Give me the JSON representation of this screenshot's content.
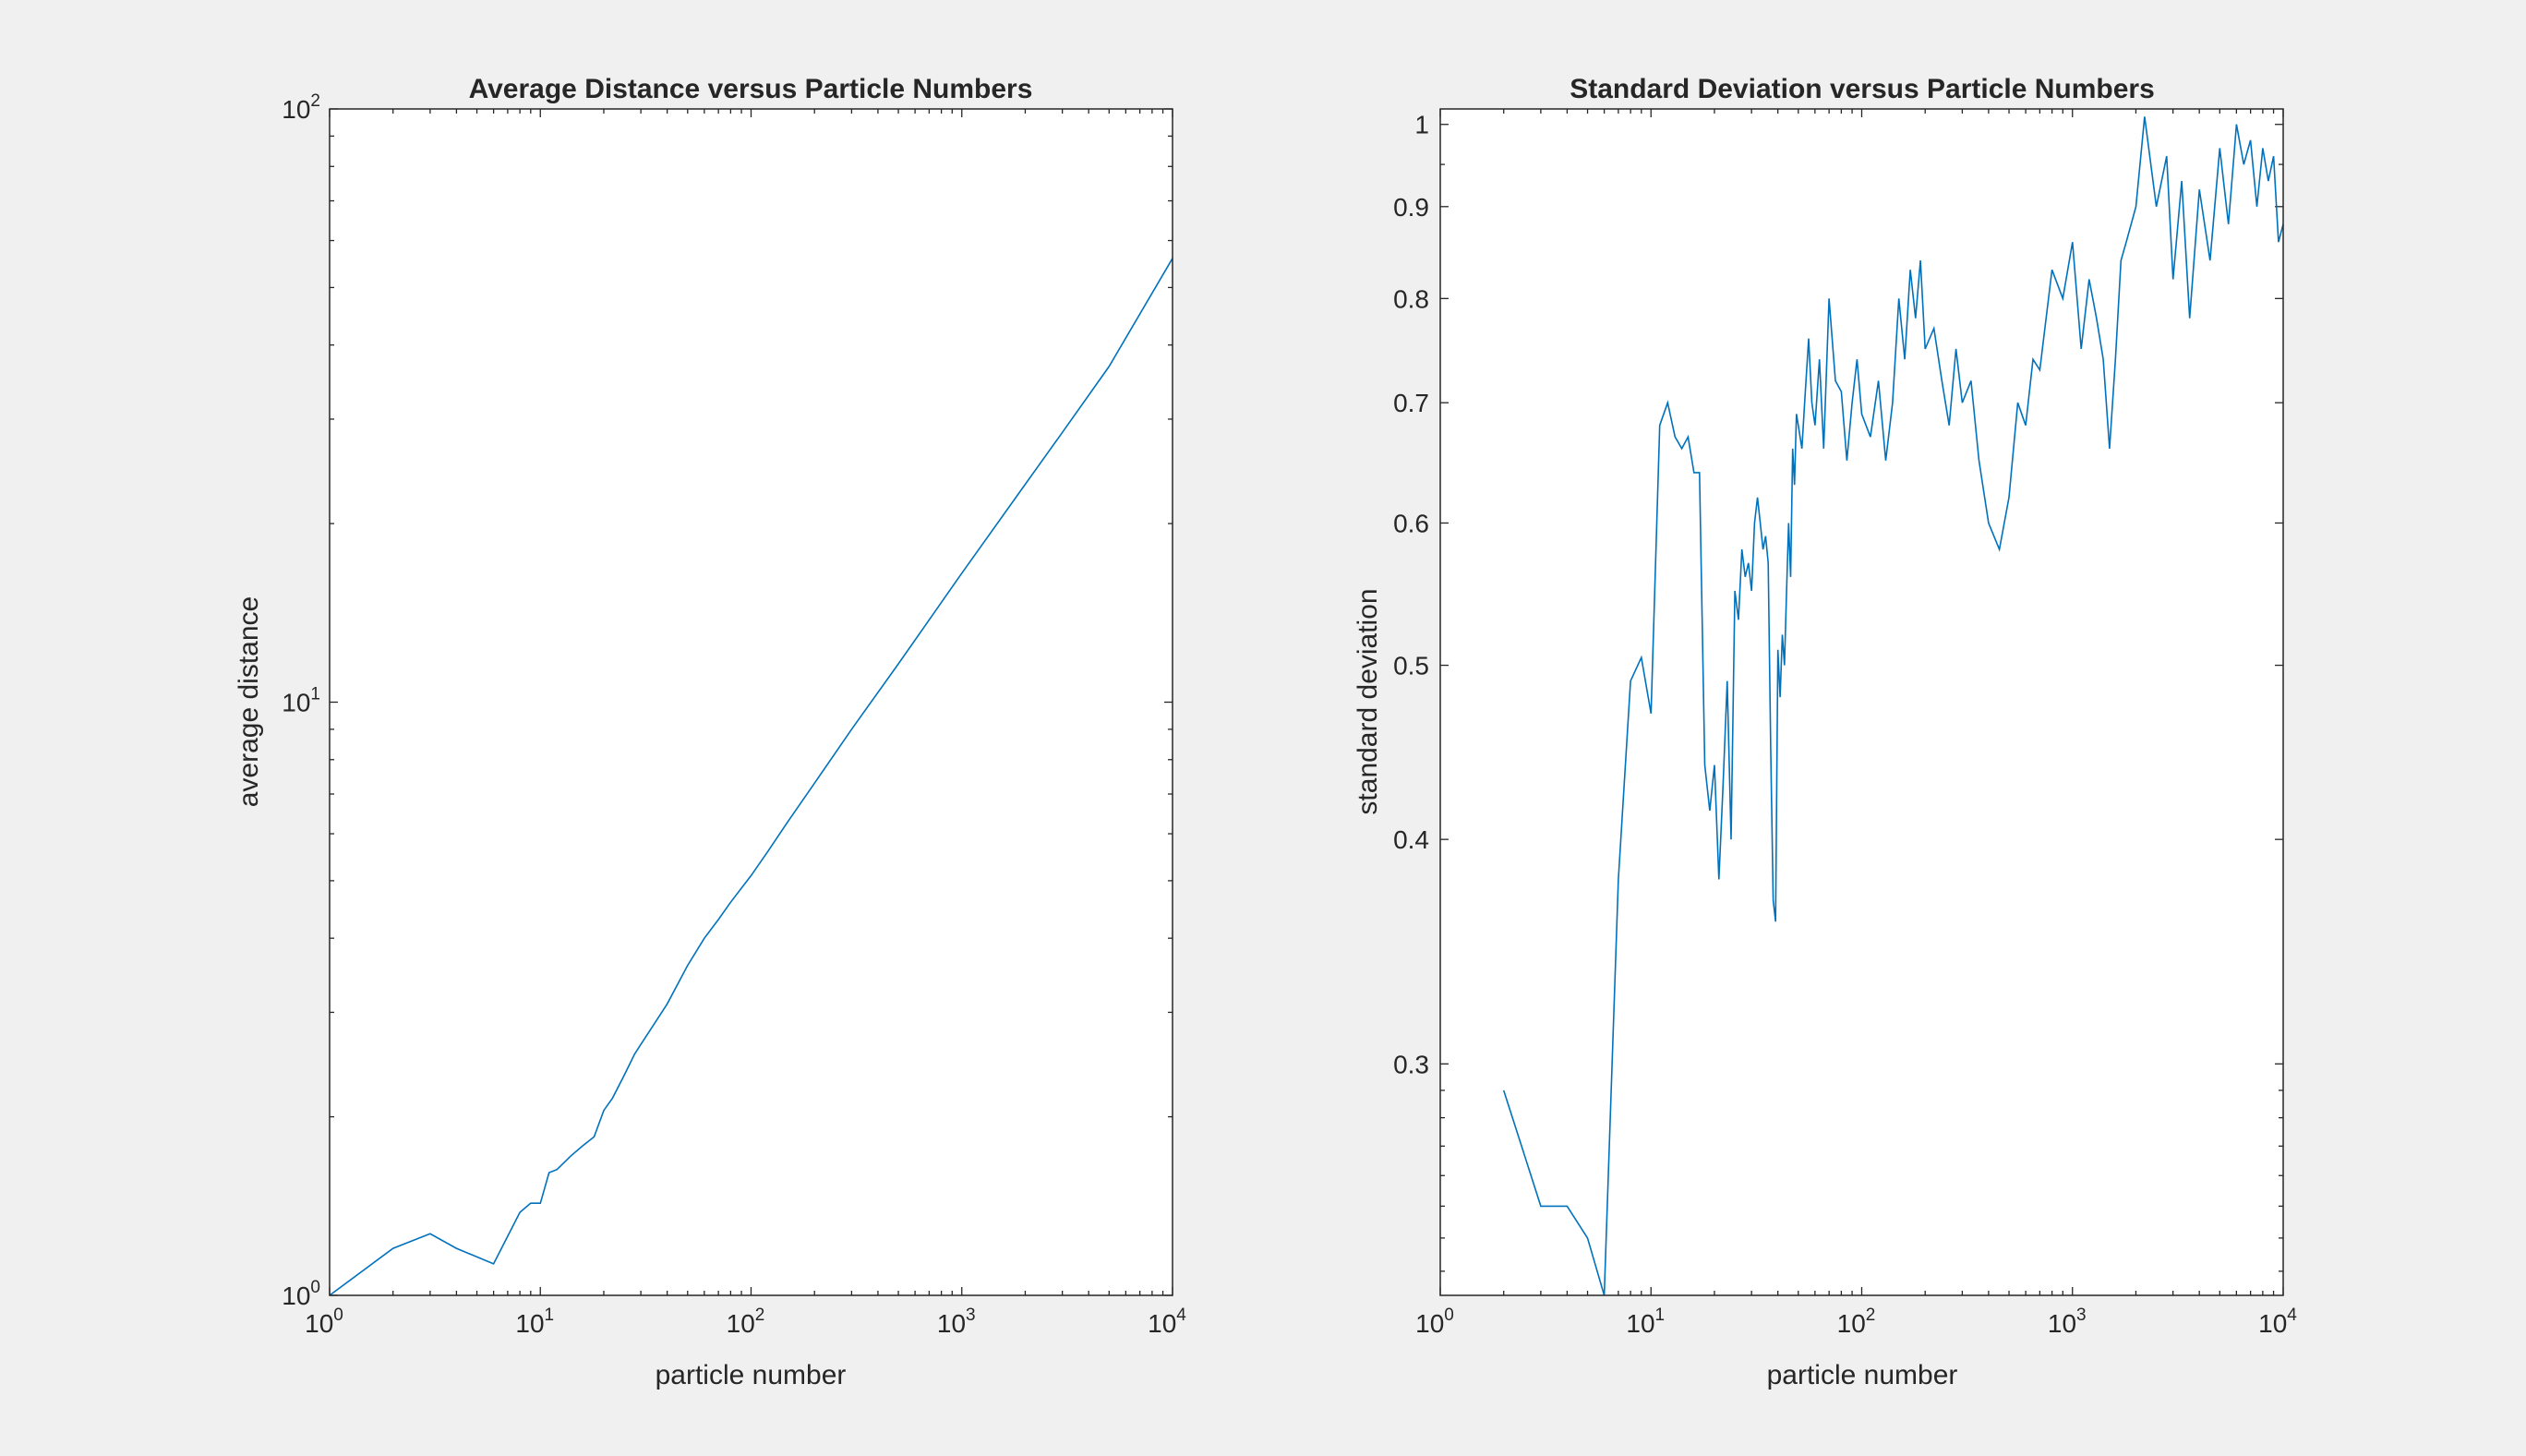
{
  "chart_data": [
    {
      "type": "line",
      "title": "Average Distance versus Particle Numbers",
      "xlabel": "particle number",
      "ylabel": "average distance",
      "xscale": "log",
      "yscale": "log",
      "xlim": [
        1,
        10000
      ],
      "ylim": [
        1,
        100
      ],
      "xticks": [
        {
          "base": "10",
          "exp": "0"
        },
        {
          "base": "10",
          "exp": "1"
        },
        {
          "base": "10",
          "exp": "2"
        },
        {
          "base": "10",
          "exp": "3"
        },
        {
          "base": "10",
          "exp": "4"
        }
      ],
      "yticks": [
        {
          "base": "10",
          "exp": "0"
        },
        {
          "base": "10",
          "exp": "1"
        },
        {
          "base": "10",
          "exp": "2"
        }
      ],
      "color": "#0072bd",
      "grid": false,
      "series": [
        {
          "x": [
            1,
            2,
            3,
            4,
            6,
            8,
            9,
            10,
            11,
            12,
            14,
            16,
            18,
            20,
            22,
            25,
            28,
            30,
            35,
            40,
            50,
            60,
            70,
            80,
            100,
            120,
            150,
            200,
            300,
            500,
            1000,
            2000,
            3000,
            5000,
            10000
          ],
          "y": [
            1.0,
            1.2,
            1.27,
            1.2,
            1.13,
            1.38,
            1.43,
            1.43,
            1.61,
            1.63,
            1.72,
            1.79,
            1.85,
            2.05,
            2.15,
            2.35,
            2.55,
            2.65,
            2.88,
            3.1,
            3.6,
            4.0,
            4.3,
            4.6,
            5.1,
            5.6,
            6.3,
            7.3,
            9.0,
            11.6,
            16.5,
            23.3,
            28.5,
            36.8,
            56.0
          ]
        }
      ]
    },
    {
      "type": "line",
      "title": "Standard Deviation versus Particle Numbers",
      "xlabel": "particle number",
      "ylabel": "standard deviation",
      "xscale": "log",
      "yscale": "log",
      "xlim": [
        1,
        10000
      ],
      "ylim": [
        0.223,
        1.02
      ],
      "xticks": [
        {
          "base": "10",
          "exp": "0"
        },
        {
          "base": "10",
          "exp": "1"
        },
        {
          "base": "10",
          "exp": "2"
        },
        {
          "base": "10",
          "exp": "3"
        },
        {
          "base": "10",
          "exp": "4"
        }
      ],
      "yticks": [
        "0.3",
        "0.4",
        "0.5",
        "0.6",
        "0.7",
        "0.8",
        "0.9",
        "1"
      ],
      "color": "#0072bd",
      "grid": false,
      "series": [
        {
          "x": [
            2,
            3,
            4,
            5,
            6,
            7,
            8,
            9,
            10,
            11,
            12,
            13,
            14,
            15,
            16,
            17,
            18,
            19,
            20,
            21,
            22,
            23,
            24,
            25,
            26,
            27,
            28,
            29,
            30,
            31,
            32,
            33,
            34,
            35,
            36,
            37,
            38,
            39,
            40,
            41,
            42,
            43,
            44,
            45,
            46,
            47,
            48,
            49,
            50,
            52,
            54,
            56,
            58,
            60,
            63,
            66,
            70,
            75,
            80,
            85,
            90,
            95,
            100,
            110,
            120,
            130,
            140,
            150,
            160,
            170,
            180,
            190,
            200,
            220,
            240,
            260,
            280,
            300,
            330,
            360,
            400,
            450,
            500,
            550,
            600,
            650,
            700,
            800,
            900,
            1000,
            1100,
            1200,
            1300,
            1400,
            1500,
            1600,
            1700,
            1800,
            2000,
            2200,
            2500,
            2800,
            3000,
            3300,
            3600,
            4000,
            4500,
            5000,
            5500,
            6000,
            6500,
            7000,
            7500,
            8000,
            8500,
            9000,
            9500,
            10000
          ],
          "y": [
            0.29,
            0.25,
            0.25,
            0.24,
            0.223,
            0.38,
            0.49,
            0.505,
            0.47,
            0.68,
            0.7,
            0.67,
            0.66,
            0.67,
            0.64,
            0.64,
            0.44,
            0.415,
            0.44,
            0.38,
            0.43,
            0.49,
            0.4,
            0.55,
            0.53,
            0.58,
            0.56,
            0.57,
            0.55,
            0.6,
            0.62,
            0.6,
            0.58,
            0.59,
            0.57,
            0.45,
            0.37,
            0.36,
            0.51,
            0.48,
            0.52,
            0.5,
            0.55,
            0.6,
            0.56,
            0.66,
            0.63,
            0.69,
            0.68,
            0.66,
            0.71,
            0.76,
            0.7,
            0.68,
            0.74,
            0.66,
            0.8,
            0.72,
            0.71,
            0.65,
            0.7,
            0.74,
            0.69,
            0.67,
            0.72,
            0.65,
            0.7,
            0.8,
            0.74,
            0.83,
            0.78,
            0.84,
            0.75,
            0.77,
            0.72,
            0.68,
            0.75,
            0.7,
            0.72,
            0.65,
            0.6,
            0.58,
            0.62,
            0.7,
            0.68,
            0.74,
            0.73,
            0.83,
            0.8,
            0.86,
            0.75,
            0.82,
            0.78,
            0.74,
            0.66,
            0.74,
            0.84,
            0.86,
            0.9,
            1.01,
            0.9,
            0.96,
            0.82,
            0.93,
            0.78,
            0.92,
            0.84,
            0.97,
            0.88,
            1.0,
            0.95,
            0.98,
            0.9,
            0.97,
            0.93,
            0.96,
            0.86,
            0.88
          ]
        }
      ]
    }
  ]
}
